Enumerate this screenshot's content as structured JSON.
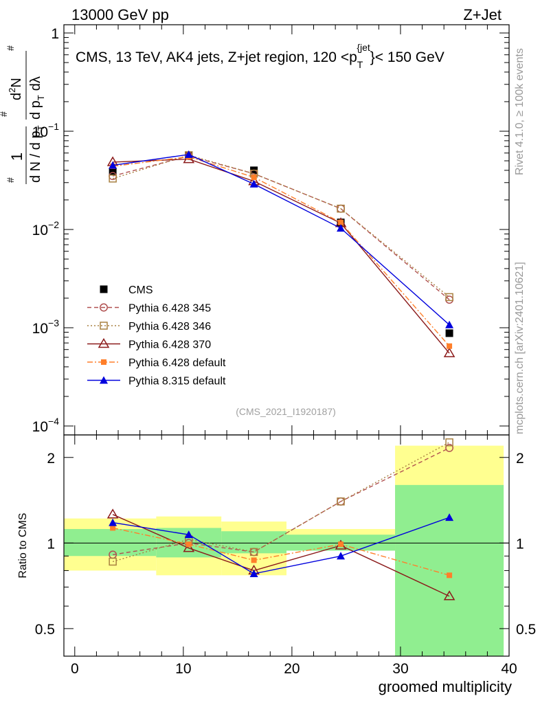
{
  "header": {
    "left": "13000 GeV pp",
    "right": "Z+Jet"
  },
  "side_labels": {
    "rivet": "Rivet 4.1.0, ≥ 100k events",
    "mcplots": "mcplots.cern.ch [arXiv:2401.10621]"
  },
  "analysis_id": "(CMS_2021_I1920187)",
  "chart_data": [
    {
      "type": "scatter",
      "panel": "main",
      "title": "CMS, 13 TeV, AK4 jets, Z+jet region, 120 <p_T^{jet}< 150 GeV",
      "title_parts": {
        "main": "CMS, 13 TeV, AK4 jets, Z+jet region, 120 <p",
        "sub": "T",
        "sup": "{jet",
        "tail": "}< 150 GeV"
      },
      "ylabel": "1/dN/dp_T d²N/dp_T dλ",
      "ylabel_parts": {
        "a": "1",
        "b": "d N / d p",
        "c": "T",
        "d": "d",
        "e": "2",
        "f": "N",
        "g": "d p",
        "h": "T",
        "i": "dλ",
        "hash": "#"
      },
      "yscale": "log",
      "ylim": [
        0.0001,
        1
      ],
      "xlim": [
        -1,
        40
      ],
      "ytick_labels": [
        {
          "value": 1,
          "base": "1",
          "exp": ""
        },
        {
          "value": 0.1,
          "base": "10",
          "exp": "−1"
        },
        {
          "value": 0.01,
          "base": "10",
          "exp": "−2"
        },
        {
          "value": 0.001,
          "base": "10",
          "exp": "−3"
        },
        {
          "value": 0.0001,
          "base": "10",
          "exp": "−4"
        }
      ],
      "legend_position": "lower-left",
      "series": [
        {
          "name": "CMS",
          "color": "#000000",
          "marker": "square-filled",
          "line": "none",
          "x": [
            3.5,
            10.5,
            16.5,
            24.5,
            34.5
          ],
          "y": [
            0.039,
            0.056,
            0.04,
            0.0118,
            0.00088
          ],
          "bins": [
            [
              -1,
              7.5
            ],
            [
              7.5,
              13.5
            ],
            [
              13.5,
              19.5
            ],
            [
              19.5,
              29.5
            ],
            [
              29.5,
              39.5
            ]
          ]
        },
        {
          "name": "Pythia 6.428 345",
          "color": "#b05050",
          "marker": "circle-open",
          "line": "dashed",
          "x": [
            3.5,
            10.5,
            16.5,
            24.5,
            34.5
          ],
          "y": [
            0.035,
            0.056,
            0.037,
            0.0163,
            0.00193
          ]
        },
        {
          "name": "Pythia 6.428 346",
          "color": "#a88040",
          "marker": "square-open",
          "line": "dotted",
          "x": [
            3.5,
            10.5,
            16.5,
            24.5,
            34.5
          ],
          "y": [
            0.033,
            0.057,
            0.037,
            0.0163,
            0.00205
          ]
        },
        {
          "name": "Pythia 6.428 370",
          "color": "#8b1a1a",
          "marker": "triangle-open",
          "line": "solid",
          "x": [
            3.5,
            10.5,
            16.5,
            24.5,
            34.5
          ],
          "y": [
            0.0485,
            0.052,
            0.031,
            0.0116,
            0.00055
          ]
        },
        {
          "name": "Pythia 6.428 default",
          "color": "#ff7f2a",
          "marker": "square-filled-small",
          "line": "dashdot",
          "x": [
            3.5,
            10.5,
            16.5,
            24.5,
            34.5
          ],
          "y": [
            0.044,
            0.055,
            0.034,
            0.0118,
            0.00065
          ]
        },
        {
          "name": "Pythia 8.315 default",
          "color": "#0000dd",
          "marker": "triangle-filled",
          "line": "solid",
          "x": [
            3.5,
            10.5,
            16.5,
            24.5,
            34.5
          ],
          "y": [
            0.045,
            0.058,
            0.029,
            0.0103,
            0.00107
          ]
        }
      ]
    },
    {
      "type": "line",
      "panel": "ratio",
      "ylabel": "Ratio to CMS",
      "xlabel": "groomed multiplicity",
      "yscale": "log",
      "ylim": [
        0.4,
        2.4
      ],
      "xlim": [
        -1,
        40
      ],
      "xticks": [
        0,
        10,
        20,
        30,
        40
      ],
      "yticks": [
        0.5,
        1,
        2
      ],
      "bins": [
        [
          -1,
          7.5
        ],
        [
          7.5,
          13.5
        ],
        [
          13.5,
          19.5
        ],
        [
          19.5,
          29.5
        ],
        [
          29.5,
          39.5
        ]
      ],
      "band_inner": {
        "color": "#90ee90",
        "low": [
          0.9,
          0.89,
          0.92,
          0.94,
          0.4
        ],
        "high": [
          1.12,
          1.13,
          1.1,
          1.07,
          1.6
        ]
      },
      "band_outer": {
        "color": "#ffff90",
        "low": [
          0.8,
          0.77,
          0.77,
          0.95,
          0.4
        ],
        "high": [
          1.22,
          1.24,
          1.19,
          1.12,
          2.2
        ]
      },
      "series": [
        {
          "name": "Pythia 6.428 345",
          "y": [
            0.91,
            1.0,
            0.93,
            1.4,
            2.16
          ]
        },
        {
          "name": "Pythia 6.428 346",
          "y": [
            0.86,
            1.03,
            0.93,
            1.4,
            2.26
          ]
        },
        {
          "name": "Pythia 6.428 370",
          "y": [
            1.26,
            0.96,
            0.8,
            0.98,
            0.65
          ]
        },
        {
          "name": "Pythia 6.428 default",
          "y": [
            1.13,
            0.99,
            0.87,
            0.99,
            0.77
          ]
        },
        {
          "name": "Pythia 8.315 default",
          "y": [
            1.18,
            1.07,
            0.78,
            0.9,
            1.23
          ]
        }
      ]
    }
  ]
}
